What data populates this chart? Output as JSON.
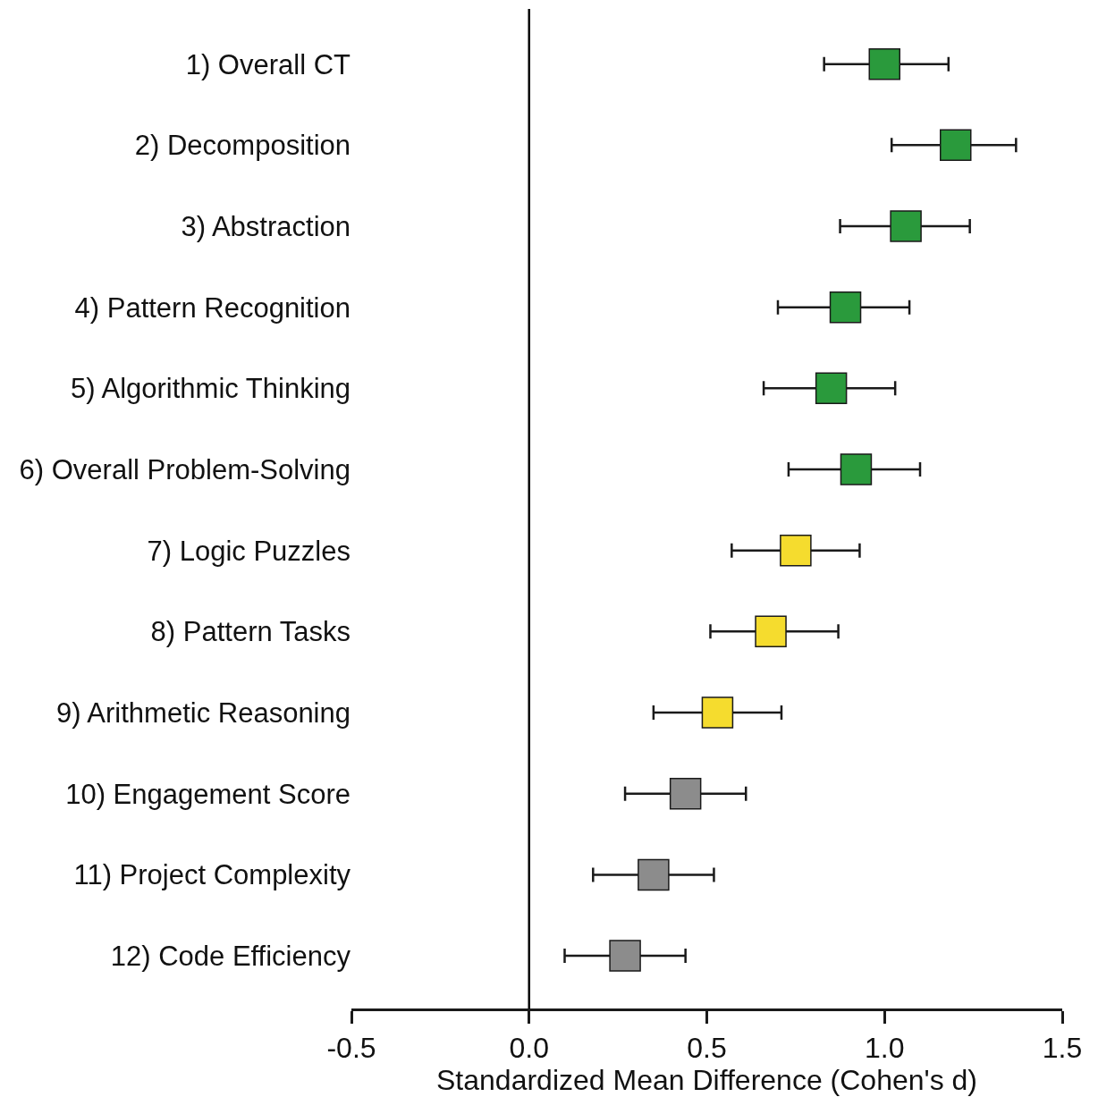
{
  "chart_data": {
    "type": "scatter",
    "orientation": "horizontal",
    "marker": "square",
    "legend": false,
    "xlabel": "Standardized Mean Difference (Cohen's d)",
    "categories": [
      "1) Overall CT",
      "2) Decomposition",
      "3) Abstraction",
      "4) Pattern Recognition",
      "5) Algorithmic Thinking",
      "6) Overall Problem-Solving",
      "7) Logic Puzzles",
      "8) Pattern Tasks",
      "9) Arithmetic Reasoning",
      "10) Engagement Score",
      "11) Project Complexity",
      "12) Code Efficiency"
    ],
    "values": [
      1.0,
      1.2,
      1.06,
      0.89,
      0.85,
      0.92,
      0.75,
      0.68,
      0.53,
      0.44,
      0.35,
      0.27
    ],
    "errors": [
      [
        0.83,
        1.18
      ],
      [
        1.02,
        1.37
      ],
      [
        0.875,
        1.24
      ],
      [
        0.7,
        1.07
      ],
      [
        0.66,
        1.03
      ],
      [
        0.73,
        1.1
      ],
      [
        0.57,
        0.93
      ],
      [
        0.51,
        0.87
      ],
      [
        0.35,
        0.71
      ],
      [
        0.27,
        0.61
      ],
      [
        0.18,
        0.52
      ],
      [
        0.1,
        0.44
      ]
    ],
    "colors": [
      "#2a9a3c",
      "#2a9a3c",
      "#2a9a3c",
      "#2a9a3c",
      "#2a9a3c",
      "#2a9a3c",
      "#f5dc2e",
      "#f5dc2e",
      "#f5dc2e",
      "#8c8c8c",
      "#8c8c8c",
      "#8c8c8c"
    ],
    "xlim": [
      -0.5,
      1.5
    ],
    "xticks": [
      {
        "value": -0.5,
        "label": "-0.5"
      },
      {
        "value": 0,
        "label": "0.0"
      },
      {
        "value": 0.5,
        "label": "0.5"
      },
      {
        "value": 1,
        "label": "1.0"
      },
      {
        "value": 1.5,
        "label": "1.5"
      }
    ],
    "ref_lines": [
      {
        "axis": "x",
        "value": 0,
        "color": "#000000"
      }
    ]
  }
}
